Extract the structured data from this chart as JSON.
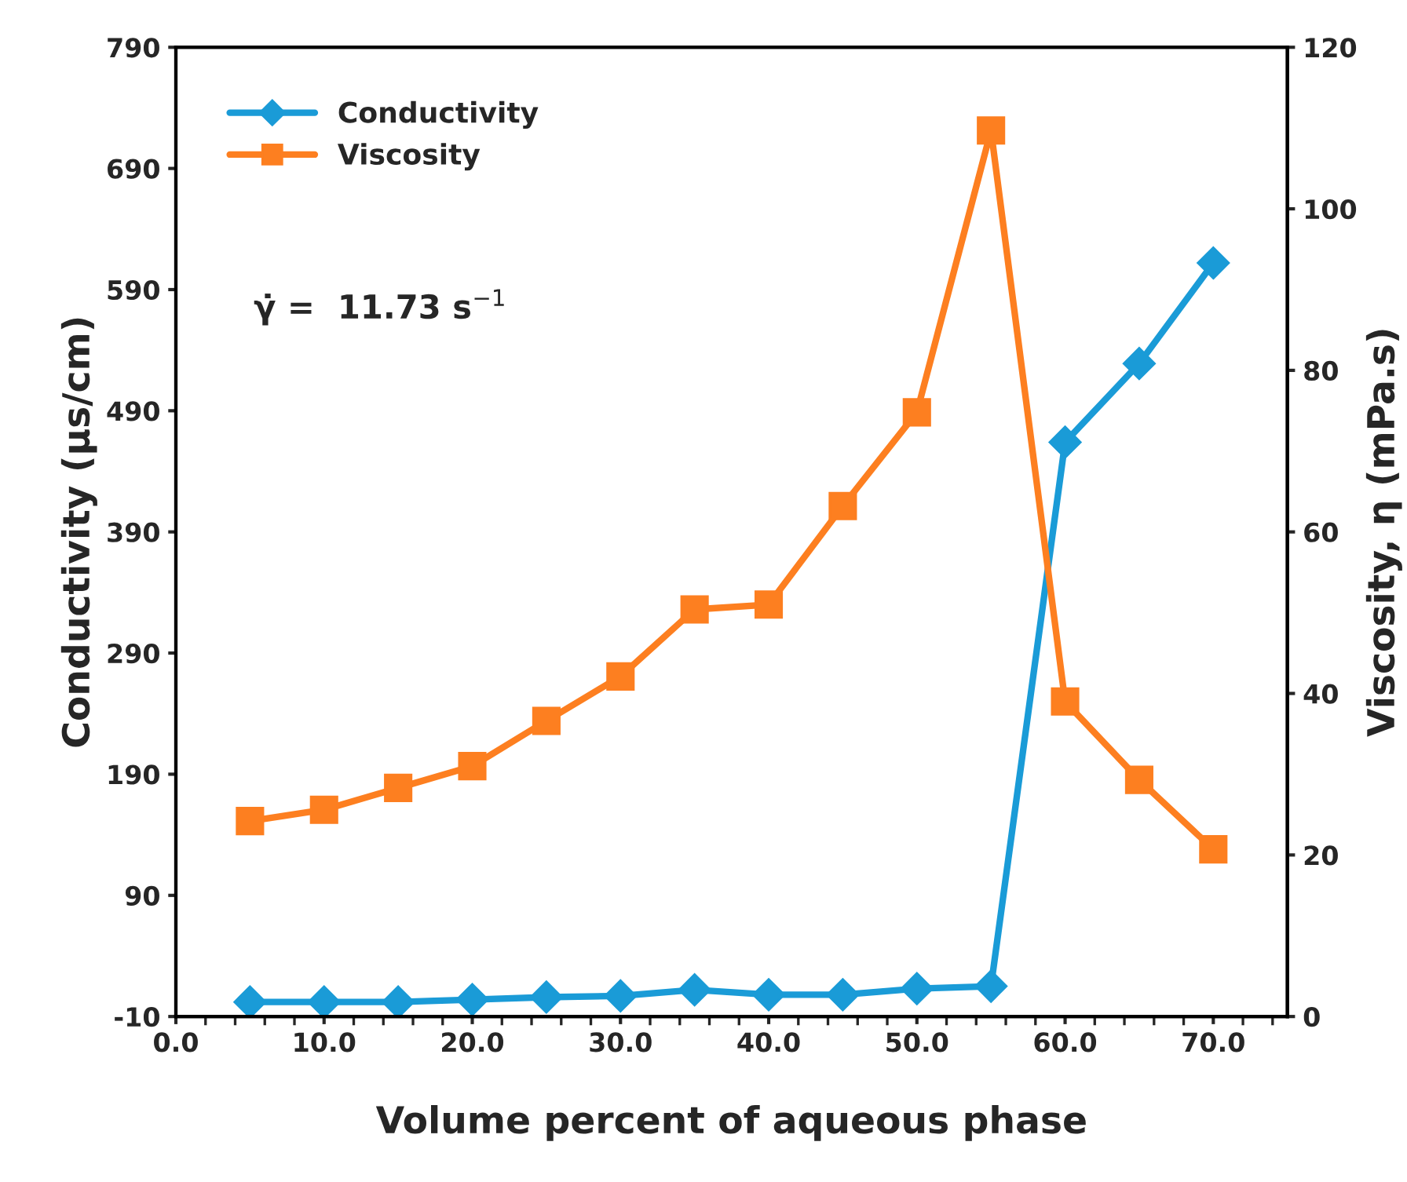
{
  "chart_data": {
    "type": "line",
    "xlabel": "Volume percent of aqueous phase",
    "ylabel": "Conductivity (µs/cm)",
    "y2label": "Viscosity, η (mPa.s)",
    "x": [
      5,
      10,
      15,
      20,
      25,
      30,
      35,
      40,
      45,
      50,
      55,
      60,
      65,
      70
    ],
    "series": [
      {
        "name": "Conductivity",
        "color": "#1a9bd7",
        "marker": "diamond",
        "values": [
          2,
          2,
          2,
          4,
          6,
          7,
          12,
          8,
          8,
          13,
          15,
          464,
          529,
          612
        ]
      },
      {
        "name": "Viscosity",
        "color": "#fd7f20",
        "marker": "square",
        "axis": "y2",
        "values": [
          24.2,
          25.6,
          28.3,
          31.0,
          36.6,
          42.1,
          50.4,
          51.0,
          63.2,
          74.8,
          109.7,
          39.0,
          29.3,
          20.7
        ]
      }
    ],
    "xlim": [
      0,
      75
    ],
    "xticks": [
      {
        "value": 0,
        "label": "0.0"
      },
      {
        "value": 10,
        "label": "10.0"
      },
      {
        "value": 20,
        "label": "20.0"
      },
      {
        "value": 30,
        "label": "30.0"
      },
      {
        "value": 40,
        "label": "40.0"
      },
      {
        "value": 50,
        "label": "50.0"
      },
      {
        "value": 60,
        "label": "60.0"
      },
      {
        "value": 70,
        "label": "70.0"
      }
    ],
    "ylim": [
      -10,
      790
    ],
    "yticks": [
      -10,
      90,
      190,
      290,
      390,
      490,
      590,
      690,
      790
    ],
    "y2lim": [
      0,
      120
    ],
    "y2ticks": [
      0,
      20,
      40,
      60,
      80,
      100,
      120
    ],
    "annotations": [
      "γ̇ =  11.73 s$^{−1}$"
    ],
    "legend": "top left",
    "grid": false
  }
}
